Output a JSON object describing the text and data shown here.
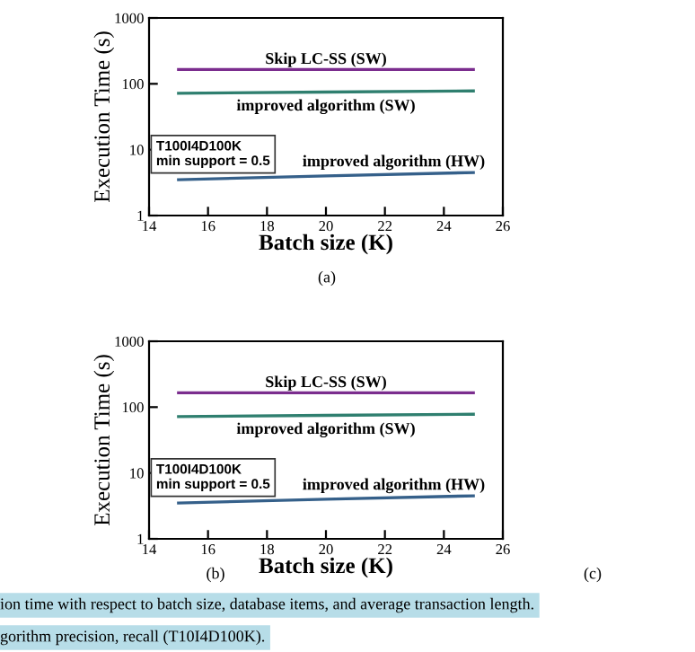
{
  "chart_data": [
    {
      "type": "line",
      "xlabel": "Batch size (K)",
      "ylabel": "Execution Time (s)",
      "log": "y",
      "xlim": [
        14,
        26
      ],
      "xticks": [
        14,
        16,
        18,
        20,
        22,
        24,
        26
      ],
      "ylim": [
        1,
        1000
      ],
      "yticks": [
        1,
        10,
        100,
        1000
      ],
      "grid": false,
      "legend": false,
      "series": [
        {
          "name": "Skip LC-SS (SW)",
          "color": "#7b2d8e",
          "x": [
            15,
            20,
            25
          ],
          "values": [
            165,
            165,
            165
          ]
        },
        {
          "name": "improved algorithm (SW)",
          "color": "#2f7f6f",
          "x": [
            15,
            20,
            25
          ],
          "values": [
            72,
            75,
            78
          ]
        },
        {
          "name": "improved algorithm (HW)",
          "color": "#35608a",
          "x": [
            15,
            20,
            25
          ],
          "values": [
            3.5,
            4,
            4.5
          ]
        }
      ],
      "annotations": [
        "T100I4D100K\nmin support = 0.5",
        "(a)"
      ]
    },
    {
      "type": "line",
      "xlabel": "Batch size (K)",
      "ylabel": "Execution Time (s)",
      "log": "y",
      "xlim": [
        14,
        26
      ],
      "xticks": [
        14,
        16,
        18,
        20,
        22,
        24,
        26
      ],
      "ylim": [
        1,
        1000
      ],
      "yticks": [
        1,
        10,
        100,
        1000
      ],
      "grid": false,
      "legend": false,
      "series": [
        {
          "name": "Skip LC-SS (SW)",
          "color": "#7b2d8e",
          "x": [
            15,
            20,
            25
          ],
          "values": [
            165,
            165,
            165
          ]
        },
        {
          "name": "improved algorithm (SW)",
          "color": "#2f7f6f",
          "x": [
            15,
            20,
            25
          ],
          "values": [
            72,
            75,
            78
          ]
        },
        {
          "name": "improved algorithm (HW)",
          "color": "#35608a",
          "x": [
            15,
            20,
            25
          ],
          "values": [
            3.5,
            4,
            4.5
          ]
        }
      ],
      "annotations": [
        "T100I4D100K\nmin support = 0.5",
        "(b)",
        "(c)",
        "ion time with respect to batch size, database items, and average transaction length.",
        "gorithm precision, recall (T10I4D100K)."
      ]
    }
  ]
}
